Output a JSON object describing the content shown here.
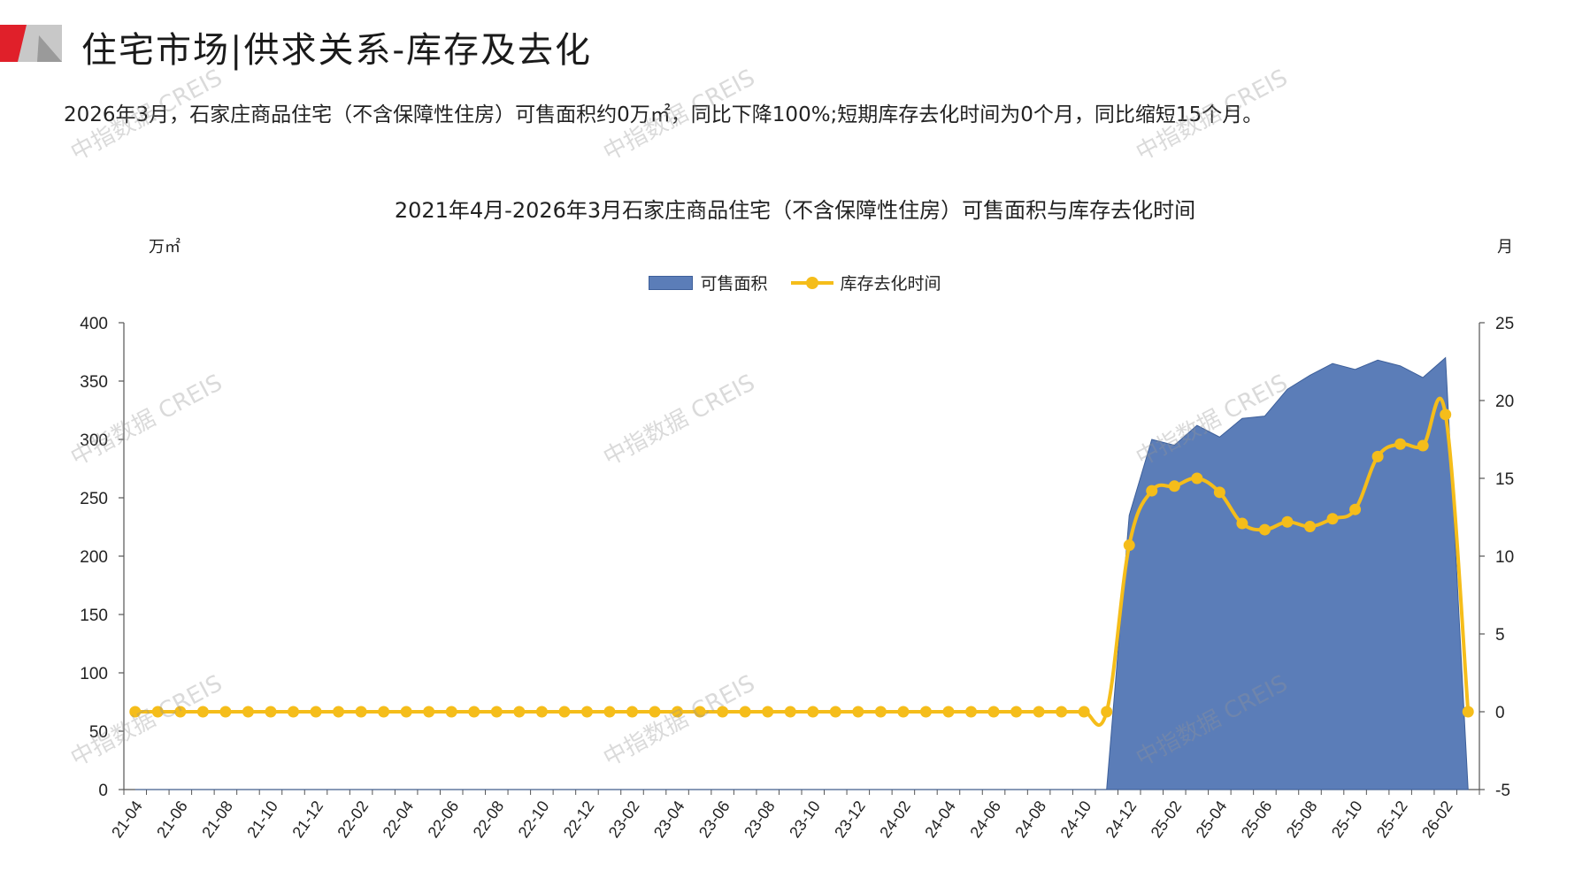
{
  "header": {
    "title": "住宅市场|供求关系-库存及去化",
    "summary": "2026年3月，石家庄商品住宅（不含保障性住房）可售面积约0万㎡，同比下降100%;短期库存去化时间为0个月，同比缩短15个月。"
  },
  "watermark": "中指数据 CREIS",
  "colors": {
    "area_fill": "#5b7db8",
    "area_stroke": "#3d5f9a",
    "line": "#f5bd1a",
    "axis": "#555555",
    "logo_red": "#e0202a",
    "logo_gray": "#9a9a9a"
  },
  "chart_data": {
    "type": "area",
    "title": "2021年4月-2026年3月石家庄商品住宅（不含保障性住房）可售面积与库存去化时间",
    "y_left_unit": "万㎡",
    "y_right_unit": "月",
    "ylim_left": [
      0,
      400
    ],
    "yticks_left": [
      "0",
      "50",
      "100",
      "150",
      "200",
      "250",
      "300",
      "350",
      "400"
    ],
    "ylim_right": [
      -5,
      25
    ],
    "yticks_right": [
      "-5",
      "0",
      "5",
      "10",
      "15",
      "20",
      "25"
    ],
    "x_tick_labels": [
      "21-04",
      "21-06",
      "21-08",
      "21-10",
      "21-12",
      "22-02",
      "22-04",
      "22-06",
      "22-08",
      "22-10",
      "22-12",
      "23-02",
      "23-04",
      "23-06",
      "23-08",
      "23-10",
      "23-12",
      "24-02",
      "24-04",
      "24-06",
      "24-08",
      "24-10",
      "24-12",
      "25-02",
      "25-04",
      "25-06",
      "25-08",
      "25-10",
      "25-12",
      "26-02"
    ],
    "legend_position": "top-center",
    "x": [
      "21-04",
      "21-05",
      "21-06",
      "21-07",
      "21-08",
      "21-09",
      "21-10",
      "21-11",
      "21-12",
      "22-01",
      "22-02",
      "22-03",
      "22-04",
      "22-05",
      "22-06",
      "22-07",
      "22-08",
      "22-09",
      "22-10",
      "22-11",
      "22-12",
      "23-01",
      "23-02",
      "23-03",
      "23-04",
      "23-05",
      "23-06",
      "23-07",
      "23-08",
      "23-09",
      "23-10",
      "23-11",
      "23-12",
      "24-01",
      "24-02",
      "24-03",
      "24-04",
      "24-05",
      "24-06",
      "24-07",
      "24-08",
      "24-09",
      "24-10",
      "24-11",
      "24-12",
      "25-01",
      "25-02",
      "25-03",
      "25-04",
      "25-05",
      "25-06",
      "25-07",
      "25-08",
      "25-09",
      "25-10",
      "25-11",
      "25-12",
      "26-01",
      "26-02",
      "26-03"
    ],
    "series": [
      {
        "name": "可售面积",
        "type": "area",
        "axis": "left",
        "values": [
          0,
          0,
          0,
          0,
          0,
          0,
          0,
          0,
          0,
          0,
          0,
          0,
          0,
          0,
          0,
          0,
          0,
          0,
          0,
          0,
          0,
          0,
          0,
          0,
          0,
          0,
          0,
          0,
          0,
          0,
          0,
          0,
          0,
          0,
          0,
          0,
          0,
          0,
          0,
          0,
          0,
          0,
          0,
          0,
          235,
          300,
          295,
          312,
          302,
          318,
          320,
          343,
          355,
          365,
          360,
          368,
          363,
          353,
          370,
          0
        ]
      },
      {
        "name": "库存去化时间",
        "type": "line",
        "axis": "right",
        "values": [
          0,
          0,
          0,
          0,
          0,
          0,
          0,
          0,
          0,
          0,
          0,
          0,
          0,
          0,
          0,
          0,
          0,
          0,
          0,
          0,
          0,
          0,
          0,
          0,
          0,
          0,
          0,
          0,
          0,
          0,
          0,
          0,
          0,
          0,
          0,
          0,
          0,
          0,
          0,
          0,
          0,
          0,
          0,
          0,
          10.7,
          14.2,
          14.5,
          15.0,
          14.1,
          12.1,
          11.7,
          12.2,
          11.9,
          12.4,
          13.0,
          16.4,
          17.2,
          17.1,
          19.1,
          0
        ]
      }
    ]
  }
}
